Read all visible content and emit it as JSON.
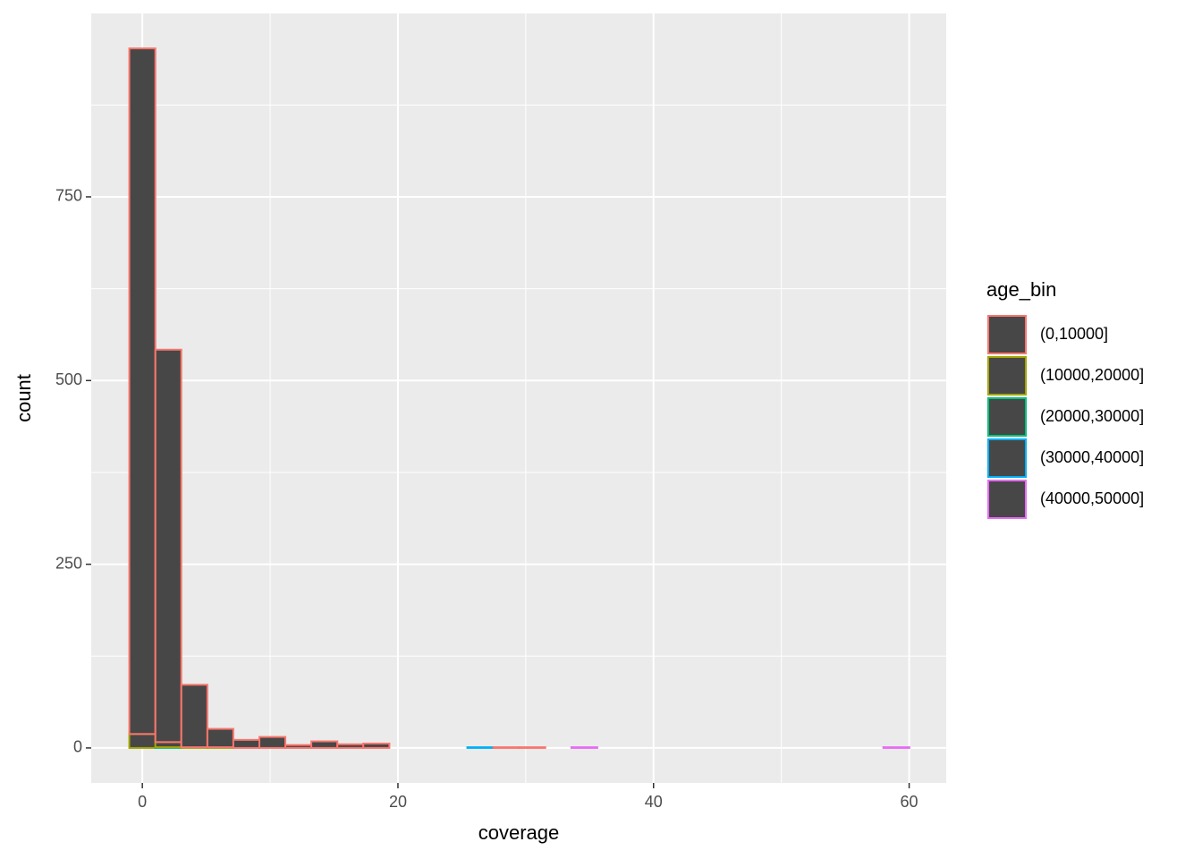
{
  "chart_data": {
    "type": "histogram",
    "x_label": "coverage",
    "y_label": "count",
    "legend_title": "age_bin",
    "bins": [
      -1.02,
      1.02,
      3.05,
      5.09,
      7.12,
      9.16,
      11.19,
      13.22,
      15.26,
      17.29,
      19.33,
      21.36,
      23.4,
      25.43,
      27.47,
      29.5,
      31.53,
      33.57,
      35.6,
      37.64,
      39.67,
      41.71,
      43.74,
      45.78,
      47.81,
      49.84,
      51.88,
      53.91,
      55.95,
      57.98,
      60.02
    ],
    "fill": "#474747",
    "series": [
      {
        "name": "(0,10000]",
        "color": "#F8766D",
        "values": [
          933,
          534,
          85,
          25,
          11,
          15,
          4,
          9,
          5,
          6,
          0,
          0,
          0,
          0,
          1,
          1,
          0,
          0,
          0,
          0,
          0,
          0,
          0,
          0,
          0,
          0,
          0,
          0,
          0,
          0
        ]
      },
      {
        "name": "(10000,20000]",
        "color": "#A3A500",
        "values": [
          19,
          7,
          1,
          1,
          0,
          0,
          0,
          0,
          0,
          0,
          0,
          0,
          0,
          0,
          0,
          0,
          0,
          0,
          0,
          0,
          0,
          0,
          0,
          0,
          0,
          0,
          0,
          0,
          0,
          0
        ]
      },
      {
        "name": "(20000,30000]",
        "color": "#00BF7D",
        "values": [
          0,
          1,
          0,
          0,
          0,
          0,
          0,
          0,
          0,
          0,
          0,
          0,
          0,
          0,
          0,
          0,
          0,
          0,
          0,
          0,
          0,
          0,
          0,
          0,
          0,
          0,
          0,
          0,
          0,
          0
        ]
      },
      {
        "name": "(30000,40000]",
        "color": "#00B0F6",
        "values": [
          0,
          0,
          0,
          0,
          0,
          0,
          0,
          0,
          0,
          0,
          0,
          0,
          0,
          1,
          0,
          0,
          0,
          0,
          0,
          0,
          0,
          0,
          0,
          0,
          0,
          0,
          0,
          0,
          0,
          0
        ]
      },
      {
        "name": "(40000,50000]",
        "color": "#E76BF3",
        "values": [
          0,
          0,
          0,
          0,
          0,
          0,
          0,
          0,
          0,
          0,
          0,
          0,
          0,
          0,
          0,
          0,
          0,
          1,
          0,
          0,
          0,
          0,
          0,
          0,
          0,
          0,
          0,
          0,
          0,
          1
        ]
      }
    ],
    "xlim": [
      -4,
      62.9
    ],
    "xticks": [
      0,
      20,
      40,
      60
    ],
    "ylim": [
      -47.6,
      999.6
    ],
    "yticks": [
      0,
      250,
      500,
      750
    ],
    "grid": true
  }
}
